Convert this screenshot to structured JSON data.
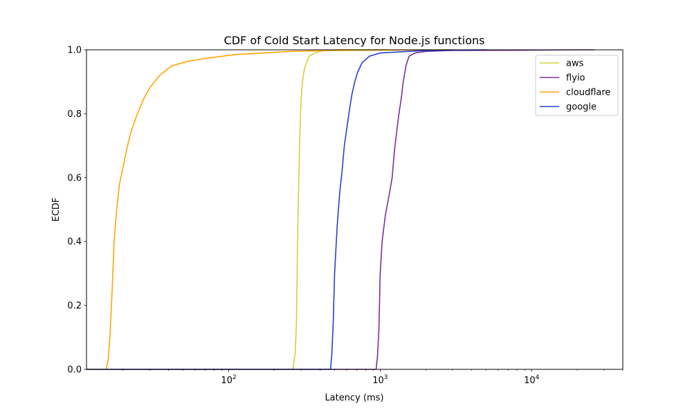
{
  "chart_data": {
    "type": "line",
    "title": "CDF of Cold Start Latency for Node.js functions",
    "xlabel": "Latency (ms)",
    "ylabel": "ECDF",
    "xscale": "log",
    "xlim": [
      11.5,
      40000
    ],
    "ylim": [
      0,
      1
    ],
    "x_ticks": [
      {
        "value": 100,
        "base": "10",
        "exp": "2"
      },
      {
        "value": 1000,
        "base": "10",
        "exp": "3"
      },
      {
        "value": 10000,
        "base": "10",
        "exp": "4"
      }
    ],
    "y_ticks": [
      "0.0",
      "0.2",
      "0.4",
      "0.6",
      "0.8",
      "1.0"
    ],
    "grid": false,
    "legend": "top-right",
    "series": [
      {
        "name": "aws",
        "color": "#d4cf3a",
        "x": [
          11.5,
          265,
          275,
          280,
          283,
          286,
          290,
          294,
          298,
          303,
          310,
          320,
          340,
          370,
          420,
          500,
          700,
          1000,
          1100
        ],
        "y": [
          0,
          0,
          0.05,
          0.15,
          0.3,
          0.45,
          0.6,
          0.72,
          0.8,
          0.87,
          0.92,
          0.95,
          0.98,
          0.99,
          0.997,
          1.0,
          1.0,
          1.0,
          1.0
        ]
      },
      {
        "name": "flyio",
        "color": "#7b2d9e",
        "x": [
          11.5,
          940,
          960,
          980,
          1000,
          1030,
          1080,
          1150,
          1200,
          1240,
          1290,
          1330,
          1380,
          1420,
          1480,
          1550,
          1700,
          2000,
          3000,
          10000,
          20000,
          26000
        ],
        "y": [
          0,
          0,
          0.04,
          0.12,
          0.3,
          0.4,
          0.48,
          0.55,
          0.6,
          0.68,
          0.75,
          0.8,
          0.85,
          0.9,
          0.95,
          0.98,
          0.99,
          0.995,
          0.998,
          0.999,
          1.0,
          1.0
        ]
      },
      {
        "name": "cloudflare",
        "color": "#ffa500",
        "x": [
          11.5,
          15.5,
          16,
          16.5,
          17,
          17.5,
          18.2,
          19,
          20,
          21,
          22.5,
          24.5,
          27,
          30,
          35,
          42,
          55,
          75,
          110,
          170,
          260,
          500,
          1000,
          3000
        ],
        "y": [
          0,
          0,
          0.03,
          0.12,
          0.25,
          0.4,
          0.5,
          0.58,
          0.63,
          0.68,
          0.74,
          0.79,
          0.84,
          0.88,
          0.92,
          0.95,
          0.965,
          0.975,
          0.985,
          0.99,
          0.995,
          0.998,
          0.999,
          1.0
        ]
      },
      {
        "name": "google",
        "color": "#2541cf",
        "x": [
          11.5,
          470,
          480,
          490,
          500,
          520,
          540,
          560,
          580,
          600,
          630,
          650,
          680,
          710,
          760,
          850,
          1000,
          2000,
          5000
        ],
        "y": [
          0,
          0,
          0.05,
          0.15,
          0.3,
          0.45,
          0.55,
          0.62,
          0.7,
          0.75,
          0.82,
          0.86,
          0.9,
          0.93,
          0.96,
          0.98,
          0.99,
          0.998,
          1.0
        ]
      }
    ]
  }
}
